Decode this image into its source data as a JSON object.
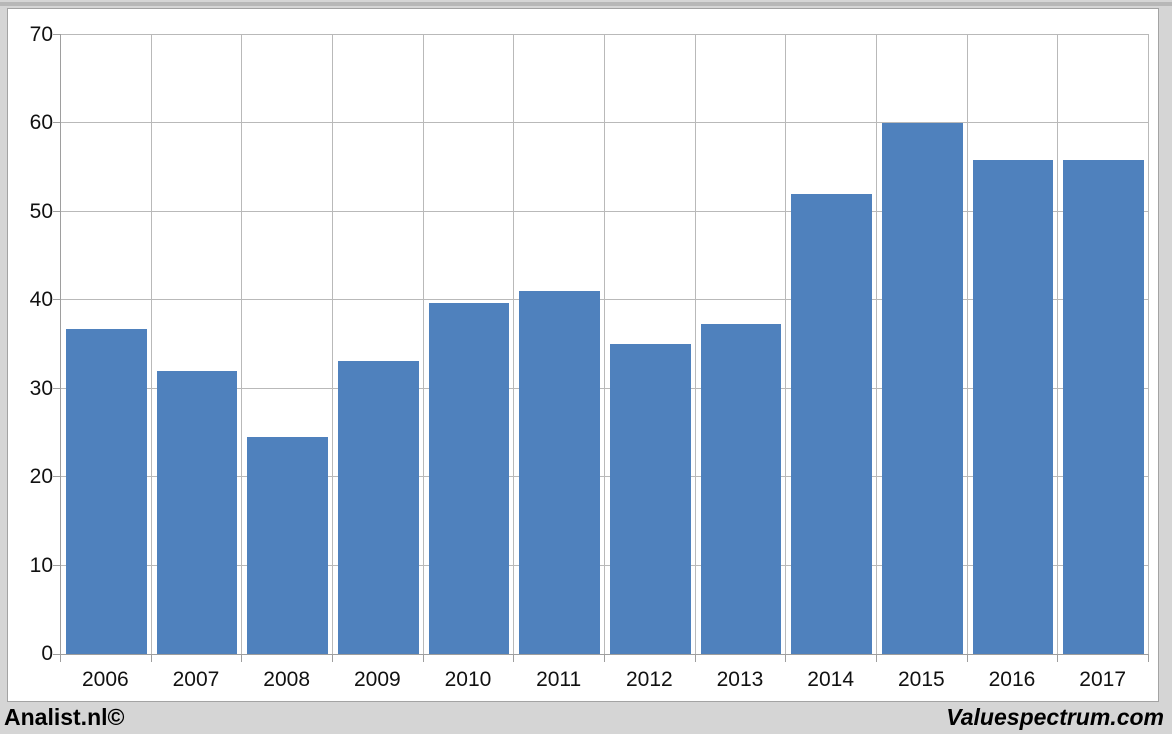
{
  "page": {
    "background": "#d5d5d5",
    "footer_left": "Analist.nl©",
    "footer_right": "Valuespectrum.com"
  },
  "chart_data": {
    "type": "bar",
    "title": "",
    "xlabel": "",
    "ylabel": "",
    "categories": [
      "2006",
      "2007",
      "2008",
      "2009",
      "2010",
      "2011",
      "2012",
      "2013",
      "2014",
      "2015",
      "2016",
      "2017"
    ],
    "values": [
      36.7,
      32.0,
      24.5,
      33.1,
      39.7,
      41.0,
      35.1,
      37.3,
      52.0,
      60.0,
      55.9,
      55.9
    ],
    "ylim": [
      0,
      70
    ],
    "yticks": [
      0,
      10,
      20,
      30,
      40,
      50,
      60,
      70
    ],
    "grid": true,
    "legend": "none",
    "bar_color": "#4f81bd",
    "gridline_color": "#b9b9b9",
    "axis_color": "#9e9e9e",
    "plot_background": "#ffffff",
    "text_color": "#111111"
  }
}
